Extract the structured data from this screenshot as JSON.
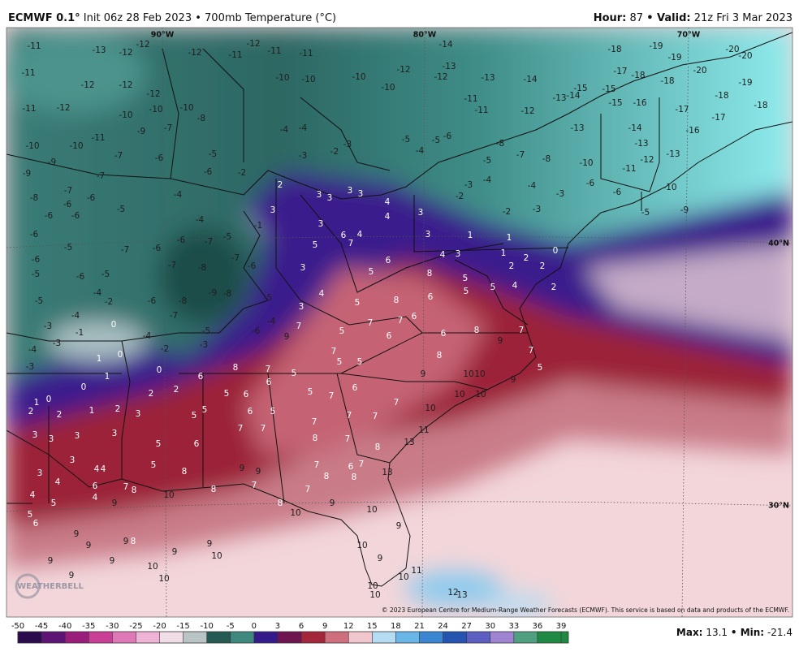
{
  "header": {
    "model": "ECMWF 0.1°",
    "title": "Init 06z 28 Feb 2023 • 700mb Temperature (°C)",
    "hour_label": "Hour:",
    "hour": 87,
    "valid_label": "• Valid:",
    "valid": "21z Fri 3 Mar 2023"
  },
  "map": {
    "longitude_labels": [
      "90°W",
      "80°W",
      "70°W"
    ],
    "latitude_labels": [
      "40°N",
      "30°N"
    ],
    "values": [
      -11,
      -13,
      -12,
      -12,
      -12,
      -11,
      -12,
      -11,
      -11,
      -14,
      -13,
      -12,
      -12,
      -13,
      -14,
      -18,
      -19,
      -19,
      -20,
      -20,
      -17,
      -18,
      -18,
      -20,
      -19,
      -15,
      -15,
      -14,
      -13,
      -15,
      -16,
      -17,
      -18,
      -18,
      -17,
      -16,
      -11,
      -12,
      -12,
      -12,
      -10,
      -10,
      -10,
      -10,
      -11,
      -11,
      -12,
      -13,
      -14,
      -13,
      -12,
      -13,
      -11,
      -10,
      -9,
      -11,
      -12,
      -10,
      -10,
      -10,
      -8,
      -9,
      -7,
      -10,
      -10,
      -11,
      -8,
      -7,
      -8,
      -10,
      -6,
      -6,
      -5,
      -9,
      -9,
      -7,
      -7,
      -6,
      -5,
      -6,
      -2,
      -4,
      -4,
      -3,
      -2,
      -3,
      -5,
      -4,
      -5,
      -6,
      -5,
      -4,
      -3,
      -4,
      -3,
      -2,
      -2,
      -3,
      -8,
      -7,
      -6,
      -6,
      -5,
      -4,
      -4,
      -6,
      -6,
      -6,
      -5,
      -7,
      -6,
      -7,
      -6,
      -8,
      -7,
      -6,
      -5,
      -7,
      -1,
      -6,
      -5,
      -6,
      -4,
      -5,
      -2,
      -6,
      -8,
      -9,
      -8,
      -5,
      -5,
      -4,
      -7,
      -4,
      -3,
      -1,
      0,
      -4,
      -5,
      -6,
      -4,
      -3,
      -2,
      -3,
      -3,
      1,
      0,
      1,
      0,
      0,
      1,
      0,
      2,
      2,
      1,
      2,
      2,
      2,
      3,
      2,
      3,
      3,
      3,
      3,
      3,
      4,
      4,
      3,
      3,
      1,
      1,
      3,
      5,
      6,
      4,
      7,
      3,
      5,
      6,
      4,
      3,
      1,
      2,
      0,
      2,
      2,
      8,
      5,
      5,
      5,
      4,
      2,
      3,
      4,
      5,
      8,
      6,
      6,
      7,
      7,
      5,
      7,
      6,
      9,
      6,
      8,
      9,
      7,
      7,
      5,
      8,
      7,
      5,
      5,
      8,
      7,
      5,
      6,
      9,
      10,
      10,
      9,
      10,
      10,
      6,
      7,
      5,
      7,
      5,
      6,
      6,
      5,
      5,
      6,
      5,
      7,
      7,
      10,
      7,
      7,
      7,
      11,
      8,
      7,
      8,
      13,
      6,
      5,
      5,
      8,
      9,
      9,
      7,
      6,
      7,
      8,
      8,
      13,
      3,
      3,
      3,
      3,
      3,
      4,
      4,
      4,
      3,
      4,
      5,
      5,
      6,
      4,
      7,
      8,
      10,
      8,
      7,
      7,
      8,
      10,
      9,
      10,
      9,
      6,
      9,
      9,
      9,
      8,
      9,
      9,
      10,
      10,
      9,
      9,
      9,
      9,
      10,
      10,
      9,
      11,
      10,
      10,
      12,
      13,
      10
    ],
    "logo": "WEATHERBELL",
    "copyright": "© 2023 European Centre for Medium-Range Weather Forecasts (ECMWF). This service is based on data and products of the ECMWF."
  },
  "colorbar": {
    "ticks": [
      -50,
      -45,
      -40,
      -35,
      -30,
      -25,
      -20,
      -15,
      -10,
      -5,
      0,
      3,
      6,
      9,
      12,
      15,
      18,
      21,
      24,
      27,
      30,
      33,
      36,
      39
    ],
    "colors": [
      "#2b0b4e",
      "#5e1474",
      "#9a1d7c",
      "#c93f96",
      "#de78b6",
      "#eeb3d6",
      "#f1dde6",
      "#b9c5c4",
      "#245a53",
      "#3f8880",
      "#351a8c",
      "#6e1450",
      "#a4263a",
      "#cf6f7e",
      "#f1c6cc",
      "#b5dcf2",
      "#6ab6e8",
      "#3a86d2",
      "#2553b0",
      "#5c5ec2",
      "#a084d2",
      "#4ea080",
      "#1f8a44"
    ]
  },
  "stats": {
    "max_label": "Max:",
    "max": 13.1,
    "min_label": "• Min:",
    "min": -21.4
  }
}
